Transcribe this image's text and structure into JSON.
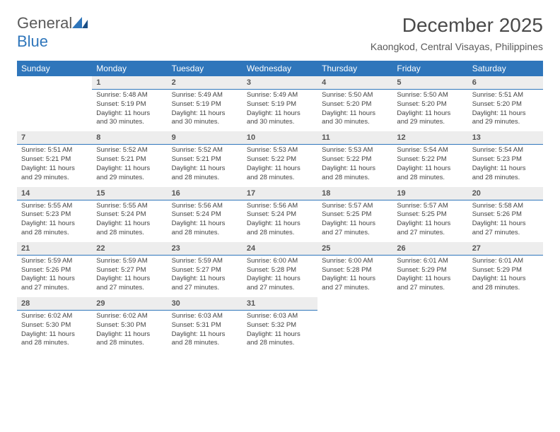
{
  "brand": {
    "name_part1": "General",
    "name_part2": "Blue"
  },
  "title": "December 2025",
  "subtitle": "Kaongkod, Central Visayas, Philippines",
  "colors": {
    "header_bg": "#2f76bb",
    "header_text": "#ffffff",
    "daynum_bg": "#ededed",
    "daynum_border": "#2f76bb",
    "body_text": "#444444",
    "title_text": "#4a4a4a"
  },
  "weekdays": [
    "Sunday",
    "Monday",
    "Tuesday",
    "Wednesday",
    "Thursday",
    "Friday",
    "Saturday"
  ],
  "weeks": [
    [
      null,
      {
        "n": "1",
        "sr": "5:48 AM",
        "ss": "5:19 PM",
        "dl": "11 hours and 30 minutes."
      },
      {
        "n": "2",
        "sr": "5:49 AM",
        "ss": "5:19 PM",
        "dl": "11 hours and 30 minutes."
      },
      {
        "n": "3",
        "sr": "5:49 AM",
        "ss": "5:19 PM",
        "dl": "11 hours and 30 minutes."
      },
      {
        "n": "4",
        "sr": "5:50 AM",
        "ss": "5:20 PM",
        "dl": "11 hours and 30 minutes."
      },
      {
        "n": "5",
        "sr": "5:50 AM",
        "ss": "5:20 PM",
        "dl": "11 hours and 29 minutes."
      },
      {
        "n": "6",
        "sr": "5:51 AM",
        "ss": "5:20 PM",
        "dl": "11 hours and 29 minutes."
      }
    ],
    [
      {
        "n": "7",
        "sr": "5:51 AM",
        "ss": "5:21 PM",
        "dl": "11 hours and 29 minutes."
      },
      {
        "n": "8",
        "sr": "5:52 AM",
        "ss": "5:21 PM",
        "dl": "11 hours and 29 minutes."
      },
      {
        "n": "9",
        "sr": "5:52 AM",
        "ss": "5:21 PM",
        "dl": "11 hours and 28 minutes."
      },
      {
        "n": "10",
        "sr": "5:53 AM",
        "ss": "5:22 PM",
        "dl": "11 hours and 28 minutes."
      },
      {
        "n": "11",
        "sr": "5:53 AM",
        "ss": "5:22 PM",
        "dl": "11 hours and 28 minutes."
      },
      {
        "n": "12",
        "sr": "5:54 AM",
        "ss": "5:22 PM",
        "dl": "11 hours and 28 minutes."
      },
      {
        "n": "13",
        "sr": "5:54 AM",
        "ss": "5:23 PM",
        "dl": "11 hours and 28 minutes."
      }
    ],
    [
      {
        "n": "14",
        "sr": "5:55 AM",
        "ss": "5:23 PM",
        "dl": "11 hours and 28 minutes."
      },
      {
        "n": "15",
        "sr": "5:55 AM",
        "ss": "5:24 PM",
        "dl": "11 hours and 28 minutes."
      },
      {
        "n": "16",
        "sr": "5:56 AM",
        "ss": "5:24 PM",
        "dl": "11 hours and 28 minutes."
      },
      {
        "n": "17",
        "sr": "5:56 AM",
        "ss": "5:24 PM",
        "dl": "11 hours and 28 minutes."
      },
      {
        "n": "18",
        "sr": "5:57 AM",
        "ss": "5:25 PM",
        "dl": "11 hours and 27 minutes."
      },
      {
        "n": "19",
        "sr": "5:57 AM",
        "ss": "5:25 PM",
        "dl": "11 hours and 27 minutes."
      },
      {
        "n": "20",
        "sr": "5:58 AM",
        "ss": "5:26 PM",
        "dl": "11 hours and 27 minutes."
      }
    ],
    [
      {
        "n": "21",
        "sr": "5:59 AM",
        "ss": "5:26 PM",
        "dl": "11 hours and 27 minutes."
      },
      {
        "n": "22",
        "sr": "5:59 AM",
        "ss": "5:27 PM",
        "dl": "11 hours and 27 minutes."
      },
      {
        "n": "23",
        "sr": "5:59 AM",
        "ss": "5:27 PM",
        "dl": "11 hours and 27 minutes."
      },
      {
        "n": "24",
        "sr": "6:00 AM",
        "ss": "5:28 PM",
        "dl": "11 hours and 27 minutes."
      },
      {
        "n": "25",
        "sr": "6:00 AM",
        "ss": "5:28 PM",
        "dl": "11 hours and 27 minutes."
      },
      {
        "n": "26",
        "sr": "6:01 AM",
        "ss": "5:29 PM",
        "dl": "11 hours and 27 minutes."
      },
      {
        "n": "27",
        "sr": "6:01 AM",
        "ss": "5:29 PM",
        "dl": "11 hours and 28 minutes."
      }
    ],
    [
      {
        "n": "28",
        "sr": "6:02 AM",
        "ss": "5:30 PM",
        "dl": "11 hours and 28 minutes."
      },
      {
        "n": "29",
        "sr": "6:02 AM",
        "ss": "5:30 PM",
        "dl": "11 hours and 28 minutes."
      },
      {
        "n": "30",
        "sr": "6:03 AM",
        "ss": "5:31 PM",
        "dl": "11 hours and 28 minutes."
      },
      {
        "n": "31",
        "sr": "6:03 AM",
        "ss": "5:32 PM",
        "dl": "11 hours and 28 minutes."
      },
      null,
      null,
      null
    ]
  ],
  "labels": {
    "sunrise": "Sunrise:",
    "sunset": "Sunset:",
    "daylight": "Daylight:"
  }
}
